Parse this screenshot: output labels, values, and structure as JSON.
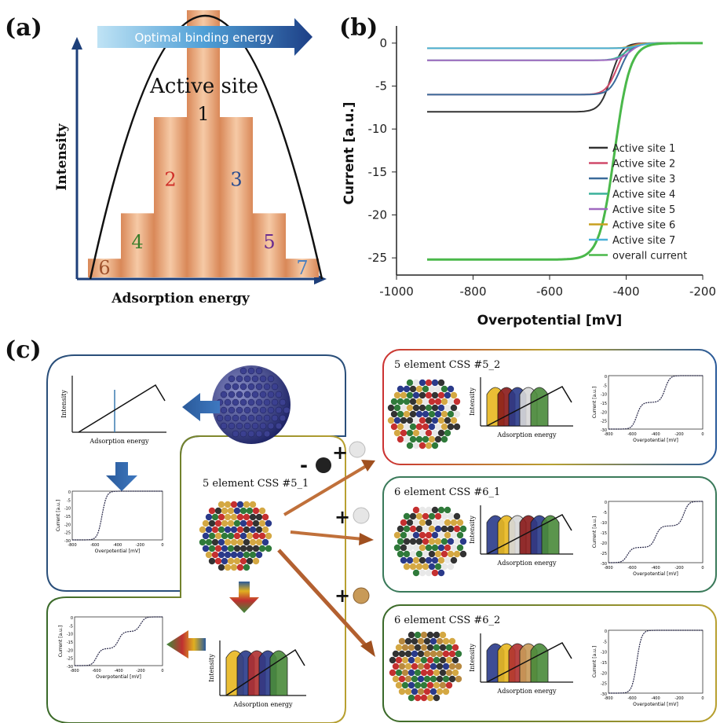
{
  "panel_a": {
    "letter": "(a)",
    "arrow_text": "Optimal binding energy",
    "active_site": "Active site",
    "ylabel": "Intensity",
    "xlabel": "Adsorption energy",
    "bar_labels": [
      "6",
      "4",
      "2",
      "1",
      "3",
      "5",
      "7"
    ],
    "bar_colors": [
      "#a0522d",
      "#3a7d2a",
      "#d0302a",
      "#111111",
      "#2a4d8f",
      "#6a2c8f",
      "#4a7fc0"
    ],
    "bar_values": [
      0.07,
      0.24,
      0.6,
      1.0,
      0.6,
      0.24,
      0.07
    ]
  },
  "panel_b": {
    "letter": "(b)",
    "chart_data": {
      "type": "line",
      "xlabel": "Overpotential [mV]",
      "ylabel": "Current [a.u.]",
      "xlim": [
        -1000,
        -200
      ],
      "ylim": [
        -27,
        2
      ],
      "xticks": [
        "-1000",
        "-800",
        "-600",
        "-400",
        "-200"
      ],
      "yticks": [
        "0",
        "-5",
        "-10",
        "-15",
        "-20",
        "-25"
      ],
      "legend_position": "bottom-right",
      "series": [
        {
          "name": "Active site 1",
          "color": "#333333",
          "plateau": -8,
          "onset": -440
        },
        {
          "name": "Active site 2",
          "color": "#d04a6a",
          "plateau": -6,
          "onset": -425
        },
        {
          "name": "Active site 3",
          "color": "#3a6a9a",
          "plateau": -6,
          "onset": -415
        },
        {
          "name": "Active site 4",
          "color": "#3ab09a",
          "plateau": -2,
          "onset": -400
        },
        {
          "name": "Active site 5",
          "color": "#a06ac0",
          "plateau": -2,
          "onset": -390
        },
        {
          "name": "Active site 6",
          "color": "#c8a020",
          "plateau": -0.6,
          "onset": -380
        },
        {
          "name": "Active site 7",
          "color": "#4ab0d8",
          "plateau": -0.6,
          "onset": -370
        },
        {
          "name": "overall current",
          "color": "#4ab84a",
          "plateau": -25.2,
          "onset": -430
        }
      ]
    }
  },
  "panel_c": {
    "letter": "(c)",
    "intensity": "Intensity",
    "adsorption_energy": "Adsorption energy",
    "current_label": "Current [a.u.]",
    "overpotential_label": "Overpotential [mV]",
    "small_xticks": [
      "-800",
      "-600",
      "-400",
      "-200",
      "0"
    ],
    "small_yticks": [
      "0",
      "-5",
      "-10",
      "-15",
      "-20",
      "-25",
      "-30"
    ],
    "center_title": "5 element CSS #5_1",
    "box1_title": "5 element CSS #5_2",
    "box2_title": "6 element CSS #6_1",
    "box3_title": "6 element CSS #6_2",
    "minus_sign": "-",
    "plus_sign": "+"
  }
}
